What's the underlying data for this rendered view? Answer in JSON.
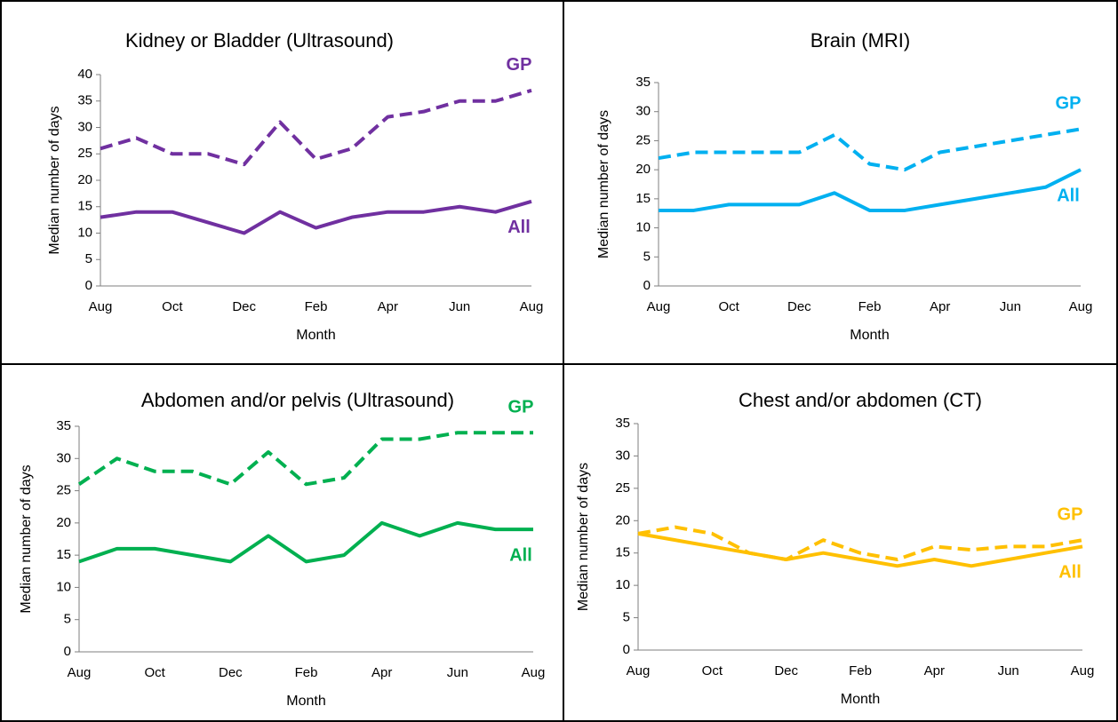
{
  "chart_data": [
    {
      "type": "line",
      "title": "Kidney or Bladder (Ultrasound)",
      "x_label": "Month",
      "y_label": "Median number of days",
      "categories": [
        "Aug",
        null,
        "Oct",
        null,
        "Dec",
        null,
        "Feb",
        null,
        "Apr",
        null,
        "Jun",
        null,
        "Aug"
      ],
      "ylim": [
        0,
        40
      ],
      "yticks": [
        0,
        5,
        10,
        15,
        20,
        25,
        30,
        35,
        40
      ],
      "series": [
        {
          "name": "GP",
          "color": "#7030a0",
          "line_style": "dashed",
          "values": [
            26,
            28,
            25,
            25,
            23,
            31,
            24,
            26,
            32,
            33,
            35,
            35,
            37
          ]
        },
        {
          "name": "All",
          "color": "#7030a0",
          "line_style": "solid",
          "values": [
            13,
            14,
            14,
            12,
            10,
            14,
            11,
            13,
            14,
            14,
            15,
            14,
            16
          ]
        }
      ]
    },
    {
      "type": "line",
      "title": "Brain (MRI)",
      "x_label": "Month",
      "y_label": "Median number of days",
      "categories": [
        "Aug",
        null,
        "Oct",
        null,
        "Dec",
        null,
        "Feb",
        null,
        "Apr",
        null,
        "Jun",
        null,
        "Aug"
      ],
      "ylim": [
        0,
        35
      ],
      "yticks": [
        0,
        5,
        10,
        15,
        20,
        25,
        30,
        35
      ],
      "series": [
        {
          "name": "GP",
          "color": "#00b0f0",
          "line_style": "dashed",
          "values": [
            22,
            23,
            23,
            23,
            23,
            26,
            21,
            20,
            23,
            24,
            25,
            26,
            27
          ]
        },
        {
          "name": "All",
          "color": "#00b0f0",
          "line_style": "solid",
          "values": [
            13,
            13,
            14,
            14,
            14,
            16,
            13,
            13,
            14,
            15,
            16,
            17,
            20
          ]
        }
      ]
    },
    {
      "type": "line",
      "title": "Abdomen and/or pelvis (Ultrasound)",
      "x_label": "Month",
      "y_label": "Median number of days",
      "categories": [
        "Aug",
        null,
        "Oct",
        null,
        "Dec",
        null,
        "Feb",
        null,
        "Apr",
        null,
        "Jun",
        null,
        "Aug"
      ],
      "ylim": [
        0,
        35
      ],
      "yticks": [
        0,
        5,
        10,
        15,
        20,
        25,
        30,
        35
      ],
      "series": [
        {
          "name": "GP",
          "color": "#00b050",
          "line_style": "dashed",
          "values": [
            26,
            30,
            28,
            28,
            26,
            31,
            26,
            27,
            33,
            33,
            34,
            34,
            34
          ]
        },
        {
          "name": "All",
          "color": "#00b050",
          "line_style": "solid",
          "values": [
            14,
            16,
            16,
            15,
            14,
            18,
            14,
            15,
            20,
            18,
            20,
            19,
            19
          ]
        }
      ]
    },
    {
      "type": "line",
      "title": "Chest and/or abdomen (CT)",
      "x_label": "Month",
      "y_label": "Median number of days",
      "categories": [
        "Aug",
        null,
        "Oct",
        null,
        "Dec",
        null,
        "Feb",
        null,
        "Apr",
        null,
        "Jun",
        null,
        "Aug"
      ],
      "ylim": [
        0,
        35
      ],
      "yticks": [
        0,
        5,
        10,
        15,
        20,
        25,
        30,
        35
      ],
      "series": [
        {
          "name": "GP",
          "color": "#ffc000",
          "line_style": "dashed",
          "values": [
            18,
            19,
            18,
            15,
            14,
            17,
            15,
            14,
            16,
            15.5,
            16,
            16,
            17
          ]
        },
        {
          "name": "All",
          "color": "#ffc000",
          "line_style": "solid",
          "values": [
            18,
            17,
            16,
            15,
            14,
            15,
            14,
            13,
            14,
            13,
            14,
            15,
            16
          ]
        }
      ]
    }
  ]
}
